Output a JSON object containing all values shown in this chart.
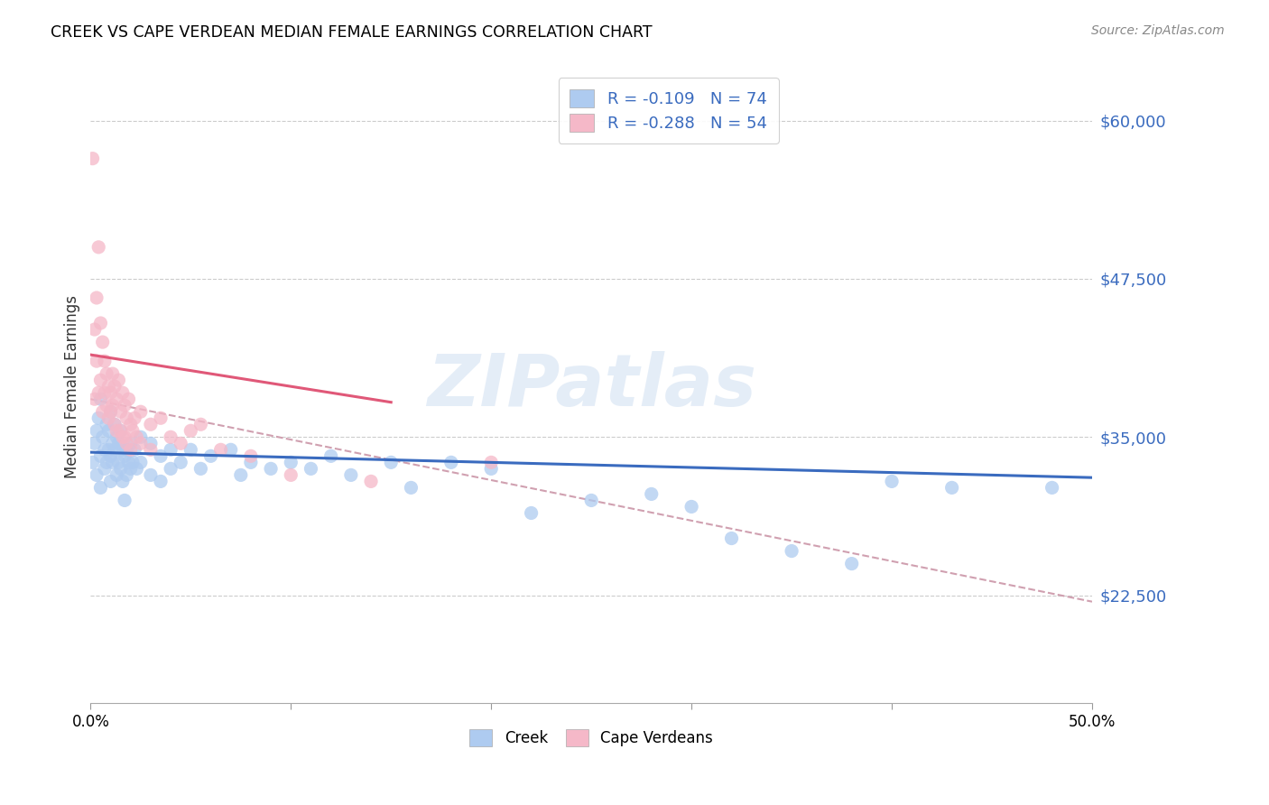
{
  "title": "CREEK VS CAPE VERDEAN MEDIAN FEMALE EARNINGS CORRELATION CHART",
  "source": "Source: ZipAtlas.com",
  "ylabel": "Median Female Earnings",
  "yticks": [
    22500,
    35000,
    47500,
    60000
  ],
  "ytick_labels": [
    "$22,500",
    "$35,000",
    "$47,500",
    "$60,000"
  ],
  "xmin": 0.0,
  "xmax": 0.5,
  "ymin": 14000,
  "ymax": 64000,
  "creek_color": "#aecbf0",
  "cape_verdean_color": "#f5b8c8",
  "creek_line_color": "#3a6bbf",
  "cape_verdean_line_color": "#e05878",
  "dashed_line_color": "#d0a0b0",
  "legend_R_creek": "-0.109",
  "legend_N_creek": "74",
  "legend_R_cape": "-0.288",
  "legend_N_cape": "54",
  "watermark": "ZIPatlas",
  "creek_intercept": 33800,
  "creek_slope": -4000,
  "cape_intercept": 41500,
  "cape_slope": -25000,
  "dashed_intercept": 38000,
  "dashed_slope": -32000,
  "creek_points": [
    [
      0.001,
      33000
    ],
    [
      0.002,
      34500
    ],
    [
      0.003,
      35500
    ],
    [
      0.003,
      32000
    ],
    [
      0.004,
      36500
    ],
    [
      0.005,
      38000
    ],
    [
      0.005,
      33500
    ],
    [
      0.005,
      31000
    ],
    [
      0.006,
      35000
    ],
    [
      0.007,
      34000
    ],
    [
      0.007,
      32500
    ],
    [
      0.008,
      36000
    ],
    [
      0.008,
      33000
    ],
    [
      0.009,
      35500
    ],
    [
      0.009,
      34000
    ],
    [
      0.01,
      37000
    ],
    [
      0.01,
      33500
    ],
    [
      0.01,
      31500
    ],
    [
      0.011,
      34500
    ],
    [
      0.011,
      33000
    ],
    [
      0.012,
      36000
    ],
    [
      0.012,
      34000
    ],
    [
      0.013,
      35000
    ],
    [
      0.013,
      32000
    ],
    [
      0.014,
      34500
    ],
    [
      0.014,
      33000
    ],
    [
      0.015,
      35500
    ],
    [
      0.015,
      32500
    ],
    [
      0.016,
      34000
    ],
    [
      0.016,
      31500
    ],
    [
      0.017,
      33500
    ],
    [
      0.017,
      30000
    ],
    [
      0.018,
      34000
    ],
    [
      0.018,
      32000
    ],
    [
      0.019,
      33000
    ],
    [
      0.02,
      34500
    ],
    [
      0.02,
      32500
    ],
    [
      0.021,
      33000
    ],
    [
      0.022,
      34000
    ],
    [
      0.023,
      32500
    ],
    [
      0.025,
      35000
    ],
    [
      0.025,
      33000
    ],
    [
      0.03,
      34500
    ],
    [
      0.03,
      32000
    ],
    [
      0.035,
      33500
    ],
    [
      0.035,
      31500
    ],
    [
      0.04,
      34000
    ],
    [
      0.04,
      32500
    ],
    [
      0.045,
      33000
    ],
    [
      0.05,
      34000
    ],
    [
      0.055,
      32500
    ],
    [
      0.06,
      33500
    ],
    [
      0.07,
      34000
    ],
    [
      0.075,
      32000
    ],
    [
      0.08,
      33000
    ],
    [
      0.09,
      32500
    ],
    [
      0.1,
      33000
    ],
    [
      0.11,
      32500
    ],
    [
      0.12,
      33500
    ],
    [
      0.13,
      32000
    ],
    [
      0.15,
      33000
    ],
    [
      0.16,
      31000
    ],
    [
      0.18,
      33000
    ],
    [
      0.2,
      32500
    ],
    [
      0.22,
      29000
    ],
    [
      0.25,
      30000
    ],
    [
      0.28,
      30500
    ],
    [
      0.3,
      29500
    ],
    [
      0.32,
      27000
    ],
    [
      0.35,
      26000
    ],
    [
      0.38,
      25000
    ],
    [
      0.4,
      31500
    ],
    [
      0.43,
      31000
    ],
    [
      0.48,
      31000
    ]
  ],
  "cape_points": [
    [
      0.001,
      57000
    ],
    [
      0.002,
      43500
    ],
    [
      0.002,
      38000
    ],
    [
      0.003,
      46000
    ],
    [
      0.003,
      41000
    ],
    [
      0.004,
      50000
    ],
    [
      0.004,
      38500
    ],
    [
      0.005,
      44000
    ],
    [
      0.005,
      39500
    ],
    [
      0.006,
      42500
    ],
    [
      0.006,
      37000
    ],
    [
      0.007,
      41000
    ],
    [
      0.007,
      38500
    ],
    [
      0.008,
      40000
    ],
    [
      0.008,
      37500
    ],
    [
      0.009,
      39000
    ],
    [
      0.009,
      36500
    ],
    [
      0.01,
      38500
    ],
    [
      0.01,
      37000
    ],
    [
      0.011,
      40000
    ],
    [
      0.011,
      37500
    ],
    [
      0.012,
      39000
    ],
    [
      0.012,
      36000
    ],
    [
      0.013,
      38000
    ],
    [
      0.013,
      35500
    ],
    [
      0.014,
      39500
    ],
    [
      0.015,
      37000
    ],
    [
      0.015,
      35500
    ],
    [
      0.016,
      38500
    ],
    [
      0.016,
      35000
    ],
    [
      0.017,
      37500
    ],
    [
      0.017,
      35000
    ],
    [
      0.018,
      36500
    ],
    [
      0.018,
      34500
    ],
    [
      0.019,
      38000
    ],
    [
      0.02,
      36000
    ],
    [
      0.02,
      34000
    ],
    [
      0.021,
      35500
    ],
    [
      0.022,
      36500
    ],
    [
      0.023,
      35000
    ],
    [
      0.025,
      37000
    ],
    [
      0.025,
      34500
    ],
    [
      0.03,
      36000
    ],
    [
      0.03,
      34000
    ],
    [
      0.035,
      36500
    ],
    [
      0.04,
      35000
    ],
    [
      0.045,
      34500
    ],
    [
      0.05,
      35500
    ],
    [
      0.055,
      36000
    ],
    [
      0.065,
      34000
    ],
    [
      0.08,
      33500
    ],
    [
      0.1,
      32000
    ],
    [
      0.14,
      31500
    ],
    [
      0.2,
      33000
    ]
  ]
}
